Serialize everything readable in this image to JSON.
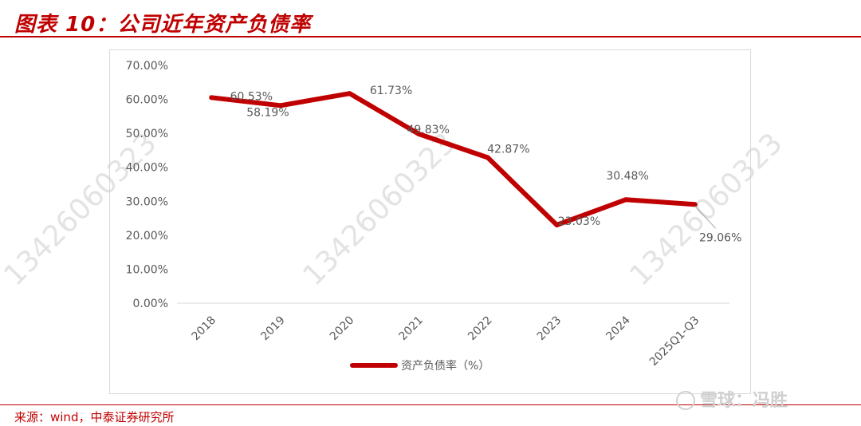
{
  "page": {
    "title": "图表 10：公司近年资产负债率",
    "source": "来源：wind，中泰证券研究所",
    "watermark_brand": "雪球：冯胜",
    "watermark_number": "13426060323"
  },
  "colors": {
    "accent": "#c00000",
    "series": "#c00000",
    "axis_text": "#595959",
    "gridline": "#d9d9d9",
    "watermark": "#d0d0d0"
  },
  "chart_data": {
    "type": "line",
    "title": "",
    "xlabel": "",
    "ylabel": "",
    "categories": [
      "2018",
      "2019",
      "2020",
      "2021",
      "2022",
      "2023",
      "2024",
      "2025Q1-Q3"
    ],
    "ylim": [
      0,
      70
    ],
    "yticks": [
      "0.00%",
      "10.00%",
      "20.00%",
      "30.00%",
      "40.00%",
      "50.00%",
      "60.00%",
      "70.00%"
    ],
    "grid": false,
    "legend_position": "bottom",
    "series": [
      {
        "name": "资产负债率（%）",
        "values": [
          60.53,
          58.19,
          61.73,
          49.83,
          42.87,
          23.03,
          30.48,
          29.06
        ],
        "labels": [
          "60.53%",
          "58.19%",
          "61.73%",
          "49.83%",
          "42.87%",
          "23.03%",
          "30.48%",
          "29.06%"
        ]
      }
    ]
  }
}
